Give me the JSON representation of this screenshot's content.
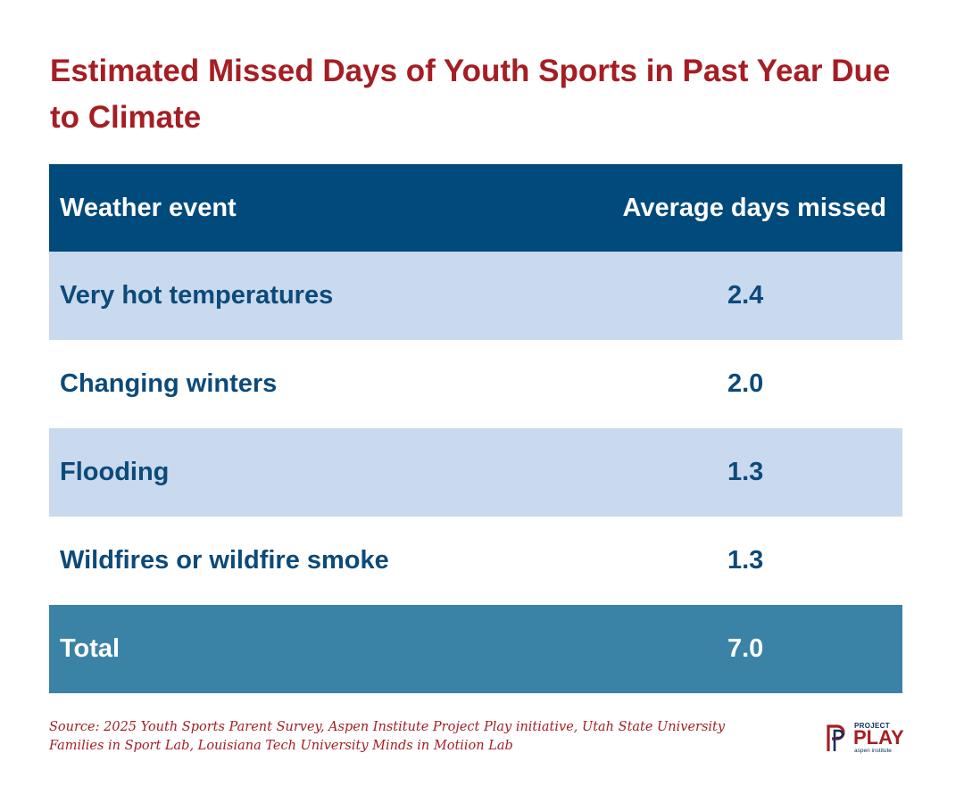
{
  "title": "Estimated Missed Days of Youth Sports in Past Year Due to Climate",
  "chart_data": {
    "type": "table",
    "title": "Estimated Missed Days of Youth Sports in Past Year Due to Climate",
    "columns": [
      "Weather event",
      "Average days missed"
    ],
    "rows": [
      {
        "event": "Very hot temperatures",
        "value": "2.4"
      },
      {
        "event": "Changing winters",
        "value": "2.0"
      },
      {
        "event": "Flooding",
        "value": "1.3"
      },
      {
        "event": "Wildfires or wildfire smoke",
        "value": "1.3"
      }
    ],
    "total": {
      "label": "Total",
      "value": "7.0"
    }
  },
  "source": {
    "line1": "Source: 2025 Youth Sports Parent Survey, Aspen Institute Project Play initiative, Utah State University",
    "line2": "Families in Sport Lab, Louisiana Tech University Minds in Motiion Lab"
  },
  "logo": {
    "project": "PROJECT",
    "play": "PLAY",
    "aspen": "aspen institute"
  },
  "colors": {
    "title": "#a51e24",
    "header_bg": "#004a7c",
    "shaded_row": "#c9d9ee",
    "total_bg": "#3a82a6",
    "row_text": "#0c4a7a"
  }
}
